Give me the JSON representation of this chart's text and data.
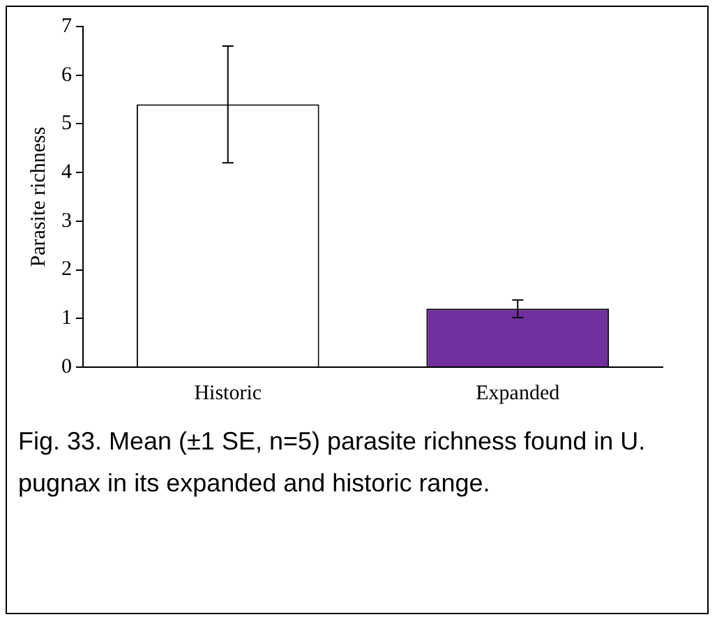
{
  "chart_data": {
    "type": "bar",
    "ylabel": "Parasite richness",
    "categories": [
      "Historic",
      "Expanded"
    ],
    "values": [
      5.4,
      1.2
    ],
    "colors": [
      "#ffffff",
      "#7030a0"
    ],
    "errors": [
      1.2,
      0.18
    ],
    "ylim": [
      0,
      7
    ],
    "yticks": [
      0,
      1,
      2,
      3,
      4,
      5,
      6,
      7
    ],
    "grid": false,
    "legend": false,
    "annotations": [
      "Fig. 33.  Mean (±1 SE, n=5) parasite richness found in U. pugnax in its expanded and historic range."
    ]
  }
}
